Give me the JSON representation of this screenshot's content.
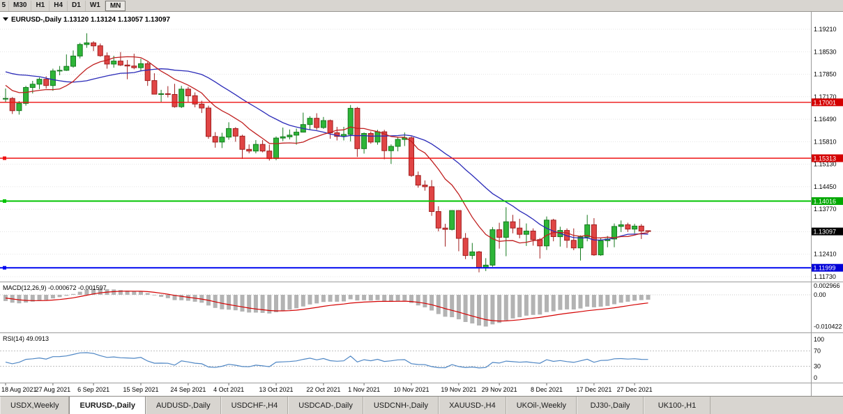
{
  "toolbar": {
    "partial_timeframe": "5",
    "timeframes": [
      "M30",
      "H1",
      "H4",
      "D1",
      "W1",
      "MN"
    ],
    "active_timeframe": "MN"
  },
  "chart_header": {
    "symbol_title": "EURUSD-,Daily",
    "ohlc_text": "1.13120 1.13124 1.13057 1.13097"
  },
  "price_axis": {
    "top_price": 1.1921,
    "step": 0.0068,
    "labels": [
      "1.19210",
      "1.18530",
      "1.17850",
      "1.17170",
      "1.16490",
      "1.15810",
      "1.15130",
      "1.14450",
      "1.13770",
      "1.13090",
      "1.12410",
      "1.11730"
    ]
  },
  "levels": [
    {
      "price": 1.17001,
      "label": "1.17001",
      "color": "#ee1111",
      "tag_bg": "#d40000",
      "width": 1.4,
      "marker": false
    },
    {
      "price": 1.15313,
      "label": "1.15313",
      "color": "#ee1111",
      "tag_bg": "#d40000",
      "width": 1.4,
      "marker": true
    },
    {
      "price": 1.14016,
      "label": "1.14016",
      "color": "#00c400",
      "tag_bg": "#00a800",
      "width": 2,
      "marker": true
    },
    {
      "price": 1.11999,
      "label": "1.11999",
      "color": "#0008f0",
      "tag_bg": "#0000d8",
      "width": 2,
      "marker": true
    }
  ],
  "current_price_tag": {
    "price": 1.13097,
    "label": "1.13097",
    "bg": "#000000"
  },
  "indicators": {
    "macd": {
      "label": "MACD(12,26,9)",
      "values_text": "-0.000672 -0.001597",
      "fast": 12,
      "slow": 26,
      "signal": 9,
      "axis_max": 0.002966,
      "axis_min": -0.010422,
      "axis_labels": [
        "0.002966",
        "0.00",
        "-0.010422"
      ],
      "histogram_color": "#b3b3b3",
      "signal_color": "#d40000"
    },
    "rsi": {
      "label": "RSI(14)",
      "value_text": "49.0913",
      "period": 14,
      "axis_labels": [
        "100",
        "70",
        "30",
        "0"
      ],
      "level_lines": [
        70,
        30
      ],
      "color": "#4e86c4"
    }
  },
  "x_axis": {
    "tick_labels": [
      "18 Aug 2021",
      "27 Aug 2021",
      "6 Sep 2021",
      "15 Sep 2021",
      "24 Sep 2021",
      "4 Oct 2021",
      "13 Oct 2021",
      "22 Oct 2021",
      "1 Nov 2021",
      "10 Nov 2021",
      "19 Nov 2021",
      "29 Nov 2021",
      "8 Dec 2021",
      "17 Dec 2021",
      "27 Dec 2021"
    ],
    "tick_indices": [
      0,
      7,
      13,
      20,
      27,
      33,
      40,
      47,
      53,
      60,
      67,
      73,
      80,
      87,
      93
    ]
  },
  "chart_data": {
    "type": "candlestick",
    "title": "EURUSD-,Daily",
    "ylim": [
      1.11624,
      1.19674
    ],
    "up_color": "#2eb538",
    "up_border": "#157a1e",
    "down_color": "#e04545",
    "down_border": "#a11f1f",
    "ma_fast_period": 10,
    "ma_fast_color": "#c01f1f",
    "ma_slow_period": 21,
    "ma_slow_color": "#2a2ab8",
    "indicator_warmup_closes": [
      1.18,
      1.1782,
      1.1793,
      1.1771,
      1.177,
      1.1802,
      1.1816,
      1.1844,
      1.1889,
      1.187,
      1.1872,
      1.1864,
      1.1835,
      1.1833,
      1.176,
      1.1738,
      1.1722,
      1.1739,
      1.1729,
      1.1796,
      1.1776,
      1.171
    ],
    "candles_ohlc": [
      [
        1.171,
        1.1742,
        1.17,
        1.1712
      ],
      [
        1.1712,
        1.1716,
        1.1665,
        1.1675
      ],
      [
        1.1675,
        1.1704,
        1.1663,
        1.1697
      ],
      [
        1.1697,
        1.175,
        1.169,
        1.1745
      ],
      [
        1.1745,
        1.1765,
        1.1727,
        1.1755
      ],
      [
        1.1755,
        1.1775,
        1.174,
        1.177
      ],
      [
        1.177,
        1.1779,
        1.1742,
        1.1751
      ],
      [
        1.1751,
        1.1802,
        1.1735,
        1.1795
      ],
      [
        1.1795,
        1.181,
        1.1782,
        1.1797
      ],
      [
        1.1797,
        1.1845,
        1.1795,
        1.1809
      ],
      [
        1.1809,
        1.1857,
        1.1805,
        1.184
      ],
      [
        1.184,
        1.188,
        1.1833,
        1.1875
      ],
      [
        1.1875,
        1.1909,
        1.1865,
        1.188
      ],
      [
        1.188,
        1.1885,
        1.1855,
        1.1871
      ],
      [
        1.1871,
        1.1878,
        1.1838,
        1.1841
      ],
      [
        1.1841,
        1.1851,
        1.1802,
        1.1816
      ],
      [
        1.1816,
        1.1841,
        1.1805,
        1.1825
      ],
      [
        1.1825,
        1.1852,
        1.181,
        1.1813
      ],
      [
        1.1813,
        1.1828,
        1.177,
        1.181
      ],
      [
        1.181,
        1.1847,
        1.18,
        1.1805
      ],
      [
        1.1805,
        1.1832,
        1.1795,
        1.1817
      ],
      [
        1.1817,
        1.1822,
        1.175,
        1.1766
      ],
      [
        1.1766,
        1.1788,
        1.1724,
        1.1725
      ],
      [
        1.1725,
        1.1738,
        1.17,
        1.1726
      ],
      [
        1.1726,
        1.1749,
        1.1715,
        1.1724
      ],
      [
        1.1724,
        1.1756,
        1.1684,
        1.1687
      ],
      [
        1.1687,
        1.175,
        1.1683,
        1.174
      ],
      [
        1.174,
        1.1747,
        1.1701,
        1.172
      ],
      [
        1.172,
        1.173,
        1.1685,
        1.1695
      ],
      [
        1.1695,
        1.1705,
        1.1668,
        1.1683
      ],
      [
        1.1683,
        1.169,
        1.159,
        1.1597
      ],
      [
        1.1597,
        1.161,
        1.1563,
        1.158
      ],
      [
        1.158,
        1.1608,
        1.1562,
        1.1595
      ],
      [
        1.1595,
        1.164,
        1.1587,
        1.1621
      ],
      [
        1.1621,
        1.1625,
        1.1581,
        1.1598
      ],
      [
        1.1598,
        1.1602,
        1.1529,
        1.1558
      ],
      [
        1.1558,
        1.1573,
        1.1546,
        1.1553
      ],
      [
        1.1553,
        1.1586,
        1.1546,
        1.1573
      ],
      [
        1.1573,
        1.1586,
        1.1549,
        1.1553
      ],
      [
        1.1553,
        1.1572,
        1.1524,
        1.153
      ],
      [
        1.153,
        1.1597,
        1.1525,
        1.1592
      ],
      [
        1.1592,
        1.1624,
        1.1583,
        1.1596
      ],
      [
        1.1596,
        1.1618,
        1.1588,
        1.1601
      ],
      [
        1.1601,
        1.1621,
        1.1572,
        1.161
      ],
      [
        1.161,
        1.1669,
        1.1609,
        1.1633
      ],
      [
        1.1633,
        1.1658,
        1.1617,
        1.1652
      ],
      [
        1.1652,
        1.1667,
        1.1617,
        1.1624
      ],
      [
        1.1624,
        1.1656,
        1.162,
        1.1645
      ],
      [
        1.1645,
        1.1648,
        1.159,
        1.1608
      ],
      [
        1.1608,
        1.1626,
        1.1585,
        1.1597
      ],
      [
        1.1597,
        1.1626,
        1.1585,
        1.1603
      ],
      [
        1.1603,
        1.1692,
        1.1582,
        1.1682
      ],
      [
        1.1682,
        1.1686,
        1.1535,
        1.156
      ],
      [
        1.156,
        1.1609,
        1.1545,
        1.1606
      ],
      [
        1.1606,
        1.1612,
        1.1575,
        1.158
      ],
      [
        1.158,
        1.1617,
        1.1572,
        1.1611
      ],
      [
        1.1611,
        1.1617,
        1.1528,
        1.1554
      ],
      [
        1.1554,
        1.1573,
        1.1514,
        1.1567
      ],
      [
        1.1567,
        1.1595,
        1.1552,
        1.1588
      ],
      [
        1.1588,
        1.1609,
        1.1568,
        1.1593
      ],
      [
        1.1593,
        1.1597,
        1.1475,
        1.1479
      ],
      [
        1.1479,
        1.1491,
        1.1442,
        1.145
      ],
      [
        1.145,
        1.1464,
        1.1433,
        1.1445
      ],
      [
        1.1445,
        1.1465,
        1.1357,
        1.137
      ],
      [
        1.137,
        1.1386,
        1.131,
        1.132
      ],
      [
        1.132,
        1.1333,
        1.1264,
        1.1316
      ],
      [
        1.1316,
        1.1374,
        1.1313,
        1.1373
      ],
      [
        1.1373,
        1.1374,
        1.125,
        1.1289
      ],
      [
        1.1289,
        1.1305,
        1.1226,
        1.1237
      ],
      [
        1.1237,
        1.1275,
        1.1226,
        1.1248
      ],
      [
        1.1248,
        1.1251,
        1.1186,
        1.12
      ],
      [
        1.12,
        1.1229,
        1.119,
        1.1208
      ],
      [
        1.1208,
        1.1323,
        1.1203,
        1.1315
      ],
      [
        1.1315,
        1.1336,
        1.1258,
        1.1292
      ],
      [
        1.1292,
        1.1383,
        1.1235,
        1.1339
      ],
      [
        1.1339,
        1.136,
        1.1304,
        1.132
      ],
      [
        1.132,
        1.1348,
        1.1289,
        1.1301
      ],
      [
        1.1301,
        1.1334,
        1.1266,
        1.1311
      ],
      [
        1.1311,
        1.1319,
        1.1267,
        1.1285
      ],
      [
        1.1285,
        1.129,
        1.1228,
        1.1266
      ],
      [
        1.1266,
        1.1355,
        1.1254,
        1.1344
      ],
      [
        1.1344,
        1.1348,
        1.128,
        1.1294
      ],
      [
        1.1294,
        1.1324,
        1.1264,
        1.1313
      ],
      [
        1.1313,
        1.1319,
        1.126,
        1.1283
      ],
      [
        1.1283,
        1.1319,
        1.1253,
        1.126
      ],
      [
        1.126,
        1.1298,
        1.1222,
        1.1293
      ],
      [
        1.1293,
        1.136,
        1.128,
        1.133
      ],
      [
        1.133,
        1.135,
        1.1236,
        1.1239
      ],
      [
        1.1239,
        1.129,
        1.1236,
        1.1282
      ],
      [
        1.1282,
        1.1296,
        1.1262,
        1.1287
      ],
      [
        1.1287,
        1.1334,
        1.1262,
        1.1325
      ],
      [
        1.1325,
        1.1343,
        1.1308,
        1.133
      ],
      [
        1.133,
        1.1336,
        1.1308,
        1.1317
      ],
      [
        1.1317,
        1.1333,
        1.1304,
        1.1326
      ],
      [
        1.1326,
        1.1332,
        1.1287,
        1.1311
      ],
      [
        1.1312,
        1.13124,
        1.13057,
        1.13097
      ]
    ]
  },
  "tabs": [
    "USDX,Weekly",
    "EURUSD-,Daily",
    "AUDUSD-,Daily",
    "USDCHF-,H4",
    "USDCAD-,Daily",
    "USDCNH-,Daily",
    "XAUUSD-,H4",
    "UKOil-,Weekly",
    "DJ30-,Daily",
    "UK100-,H1"
  ]
}
